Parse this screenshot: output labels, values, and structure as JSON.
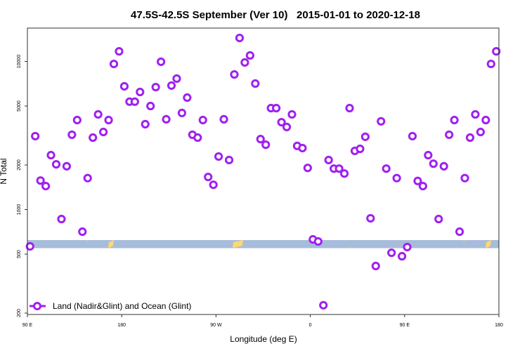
{
  "chart_data": {
    "type": "scatter",
    "title": "47.5S-42.5S September (Ver 10)   2015-01-01 to 2020-12-18",
    "xlabel": "Longitude (deg E)",
    "ylabel": "N Total",
    "xlim": [
      90,
      540
    ],
    "ylim": [
      200,
      16500
    ],
    "yscale": "log",
    "x_ticks": [
      90,
      180,
      270,
      360,
      450,
      540
    ],
    "x_tick_labels": [
      "90 E",
      "180",
      "90 W",
      "0",
      "90 E",
      "180"
    ],
    "y_ticks": [
      200,
      500,
      1000,
      2000,
      5000,
      10000
    ],
    "y_tick_labels": [
      "200",
      "500",
      "1000",
      "2000",
      "5000",
      "10000"
    ],
    "grid": false,
    "legend": {
      "position": "bottom-left",
      "entries": [
        "Land (Nadir&Glint) and Ocean (Glint)"
      ]
    },
    "series": [
      {
        "name": "Land (Nadir&Glint) and Ocean (Glint)",
        "color": "#A020F0",
        "x": [
          92.5,
          97.5,
          102.5,
          107.5,
          112.5,
          117.5,
          122.5,
          127.5,
          132.5,
          137.5,
          142.5,
          147.5,
          152.5,
          157.5,
          162.5,
          167.5,
          172.5,
          177.5,
          182.5,
          187.5,
          192.5,
          197.5,
          202.5,
          207.5,
          212.5,
          217.5,
          222.5,
          227.5,
          232.5,
          237.5,
          242.5,
          247.5,
          252.5,
          257.5,
          262.5,
          267.5,
          272.5,
          277.5,
          282.5,
          287.5,
          292.5,
          297.5,
          302.5,
          307.5,
          312.5,
          317.5,
          322.5,
          327.5,
          332.5,
          337.5,
          342.5,
          347.5,
          352.5,
          357.5,
          362.5,
          367.5,
          372.5,
          377.5,
          382.5,
          387.5,
          392.5,
          397.5,
          402.5,
          407.5,
          412.5,
          417.5,
          422.5,
          427.5,
          432.5,
          437.5,
          442.5,
          447.5,
          452.5,
          457.5,
          462.5,
          467.5,
          472.5,
          477.5,
          482.5,
          487.5,
          492.5,
          497.5,
          502.5,
          507.5,
          512.5,
          517.5,
          522.5,
          527.5,
          532.5,
          537.5
        ],
        "y": [
          564,
          3130,
          1570,
          1440,
          2330,
          2020,
          863,
          1960,
          3200,
          4020,
          709,
          1630,
          3060,
          4390,
          3340,
          4020,
          9620,
          11700,
          6790,
          5350,
          5350,
          6220,
          3770,
          5000,
          6710,
          9950,
          4070,
          6870,
          7660,
          4490,
          5700,
          3200,
          3060,
          4020,
          1660,
          1470,
          2280,
          4070,
          2160,
          8170,
          14400,
          9840,
          10980,
          7090,
          2990,
          2740,
          4840,
          4840,
          3890,
          3610,
          4390,
          2690,
          2600,
          1910,
          629,
          609,
          226,
          2160,
          1890,
          1890,
          1750,
          4840,
          2490,
          2570,
          3100,
          873,
          416,
          3940,
          1890,
          511,
          1630,
          484,
          558,
          3130,
          1560,
          1440,
          2330,
          2040,
          863,
          1960,
          3200,
          4020,
          709,
          1630,
          3060,
          4390,
          3340,
          4020,
          9620,
          11700
        ]
      }
    ],
    "map_strip": {
      "ocean_color": "#A6BCDA",
      "land_color": "#FFD86E"
    }
  }
}
